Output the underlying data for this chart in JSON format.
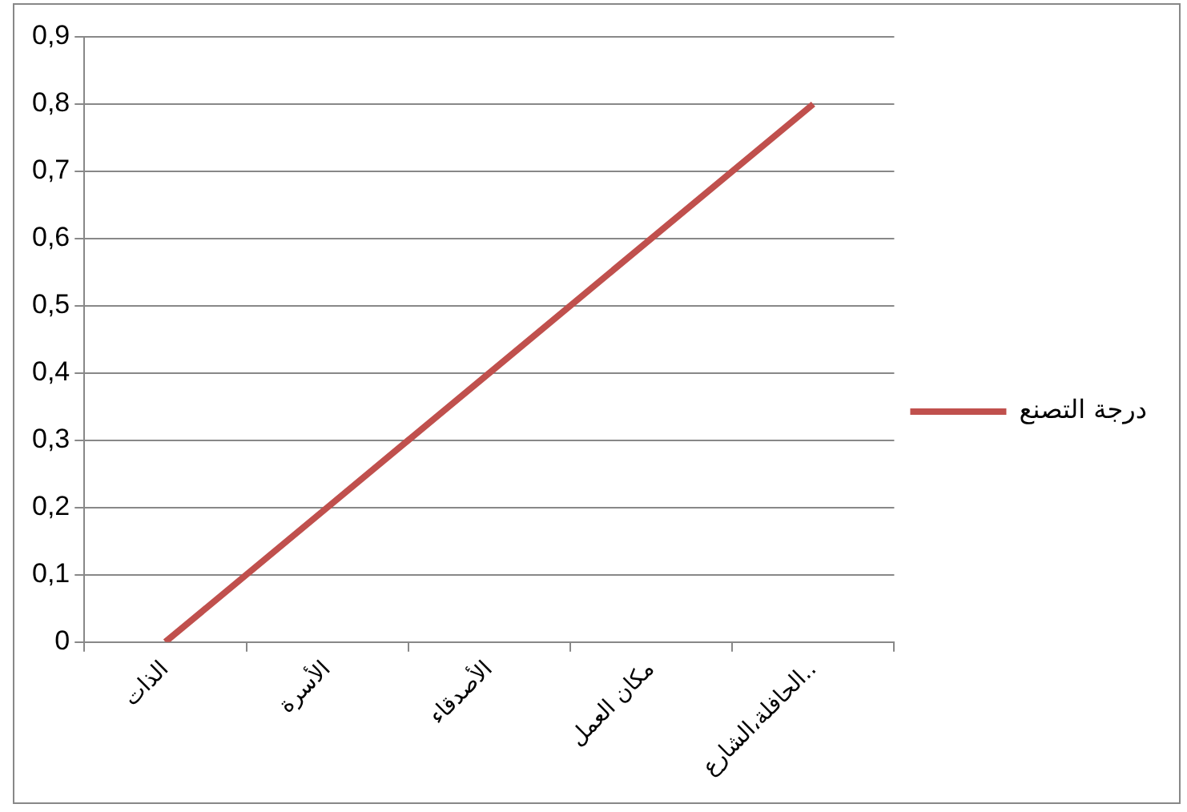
{
  "chart_data": {
    "type": "line",
    "categories": [
      "الذات",
      "الأسرة",
      "الأصدقاء",
      "مكان العمل",
      "الحافلة،الشارع.."
    ],
    "series": [
      {
        "name": "درجة التصنع",
        "color": "#c0504d",
        "values": [
          0,
          0.2,
          0.4,
          0.6,
          0.8
        ]
      }
    ],
    "ylim": [
      0,
      0.9
    ],
    "yticks": [
      {
        "value": 0,
        "label": "0"
      },
      {
        "value": 0.1,
        "label": "0,1"
      },
      {
        "value": 0.2,
        "label": "0,2"
      },
      {
        "value": 0.3,
        "label": "0,3"
      },
      {
        "value": 0.4,
        "label": "0,4"
      },
      {
        "value": 0.5,
        "label": "0,5"
      },
      {
        "value": 0.6,
        "label": "0,6"
      },
      {
        "value": 0.7,
        "label": "0,7"
      },
      {
        "value": 0.8,
        "label": "0,8"
      },
      {
        "value": 0.9,
        "label": "0,9"
      }
    ],
    "grid": "y",
    "legend": "right",
    "marker": "none",
    "line_style": "solid"
  }
}
